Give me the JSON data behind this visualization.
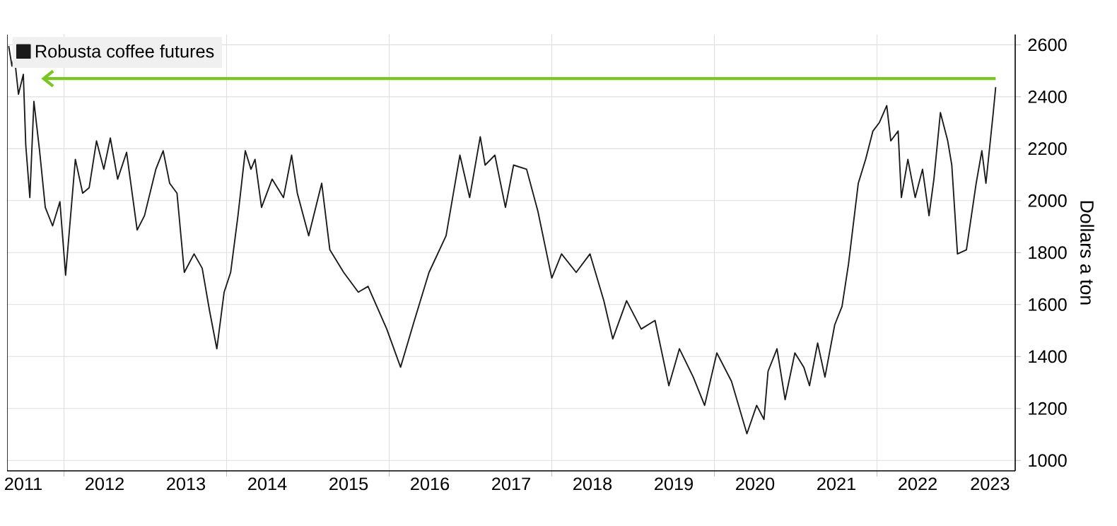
{
  "chart_data": {
    "type": "line",
    "ylabel": "Dollars a ton",
    "x": [
      2011.32,
      2011.36,
      2011.39,
      2011.44,
      2011.5,
      2011.53,
      2011.58,
      2011.63,
      2011.7,
      2011.77,
      2011.86,
      2011.95,
      2012.02,
      2012.14,
      2012.23,
      2012.31,
      2012.4,
      2012.49,
      2012.57,
      2012.66,
      2012.77,
      2012.9,
      2012.99,
      2013.13,
      2013.22,
      2013.3,
      2013.39,
      2013.48,
      2013.6,
      2013.7,
      2013.79,
      2013.88,
      2013.97,
      2014.05,
      2014.14,
      2014.23,
      2014.3,
      2014.35,
      2014.43,
      2014.56,
      2014.7,
      2014.8,
      2014.87,
      2015.01,
      2015.17,
      2015.27,
      2015.44,
      2015.62,
      2015.74,
      2015.97,
      2016.14,
      2016.31,
      2016.49,
      2016.7,
      2016.87,
      2016.99,
      2017.12,
      2017.18,
      2017.3,
      2017.43,
      2017.53,
      2017.69,
      2017.83,
      2018.0,
      2018.12,
      2018.3,
      2018.47,
      2018.64,
      2018.75,
      2018.92,
      2019.1,
      2019.27,
      2019.44,
      2019.57,
      2019.74,
      2019.88,
      2020.03,
      2020.21,
      2020.4,
      2020.52,
      2020.61,
      2020.66,
      2020.77,
      2020.87,
      2020.99,
      2021.1,
      2021.17,
      2021.27,
      2021.36,
      2021.48,
      2021.57,
      2021.65,
      2021.77,
      2021.86,
      2021.95,
      2022.03,
      2022.12,
      2022.17,
      2022.26,
      2022.3,
      2022.38,
      2022.47,
      2022.56,
      2022.64,
      2022.7,
      2022.78,
      2022.87,
      2022.92,
      2022.99,
      2023.1,
      2023.22,
      2023.29,
      2023.34,
      2023.43,
      2023.46
    ],
    "series": [
      {
        "name": "Robusta coffee futures",
        "color": "#1a1a1a",
        "values": [
          2595,
          2518,
          2556,
          2410,
          2486,
          2214,
          2012,
          2382,
          2192,
          1974,
          1903,
          1996,
          1713,
          2159,
          2029,
          2050,
          2230,
          2121,
          2241,
          2083,
          2186,
          1887,
          1942,
          2121,
          2192,
          2067,
          2029,
          1724,
          1795,
          1740,
          1577,
          1430,
          1648,
          1724,
          1942,
          2192,
          2121,
          2159,
          1974,
          2083,
          2012,
          2175,
          2029,
          1865,
          2067,
          1811,
          1724,
          1648,
          1670,
          1506,
          1359,
          1539,
          1724,
          1865,
          2175,
          2012,
          2246,
          2137,
          2175,
          1974,
          2137,
          2121,
          1958,
          1702,
          1795,
          1724,
          1795,
          1615,
          1468,
          1615,
          1506,
          1539,
          1288,
          1430,
          1321,
          1212,
          1414,
          1305,
          1103,
          1212,
          1158,
          1343,
          1430,
          1234,
          1414,
          1359,
          1288,
          1452,
          1321,
          1522,
          1593,
          1757,
          2067,
          2159,
          2268,
          2301,
          2366,
          2230,
          2268,
          2012,
          2159,
          2012,
          2121,
          1942,
          2083,
          2339,
          2230,
          2137,
          1795,
          1811,
          2067,
          2192,
          2067,
          2339,
          2437
        ]
      }
    ],
    "xlim": [
      2011.3,
      2023.7
    ],
    "xticks": [
      {
        "value": 2011.5,
        "label": "2011"
      },
      {
        "value": 2012.5,
        "label": "2012"
      },
      {
        "value": 2013.5,
        "label": "2013"
      },
      {
        "value": 2014.5,
        "label": "2014"
      },
      {
        "value": 2015.5,
        "label": "2015"
      },
      {
        "value": 2016.5,
        "label": "2016"
      },
      {
        "value": 2017.5,
        "label": "2017"
      },
      {
        "value": 2018.5,
        "label": "2018"
      },
      {
        "value": 2019.5,
        "label": "2019"
      },
      {
        "value": 2020.5,
        "label": "2020"
      },
      {
        "value": 2021.5,
        "label": "2021"
      },
      {
        "value": 2022.5,
        "label": "2022"
      },
      {
        "value": 2023.39,
        "label": "2023"
      },
      {
        "value": 2012,
        "label": null
      },
      {
        "value": 2014,
        "label": null
      },
      {
        "value": 2016,
        "label": null
      },
      {
        "value": 2018,
        "label": null
      },
      {
        "value": 2020,
        "label": null
      },
      {
        "value": 2022,
        "label": null
      }
    ],
    "ylim": [
      960,
      2640
    ],
    "yticks": [
      1000,
      1200,
      1400,
      1600,
      1800,
      2000,
      2200,
      2400,
      2600
    ],
    "ref_lines": [
      {
        "axis": "y",
        "value": 2470,
        "color": "#7cc623"
      }
    ],
    "grid": true,
    "legend": "top left",
    "marker": "none",
    "line_style": "solid"
  }
}
